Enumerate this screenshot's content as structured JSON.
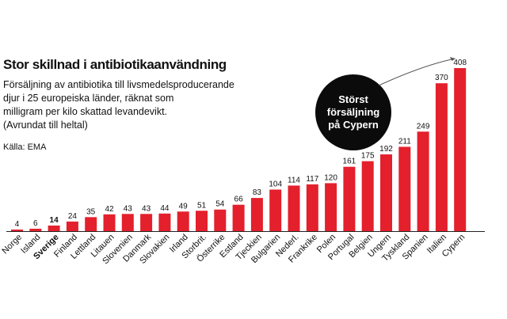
{
  "chart_data": {
    "type": "bar",
    "title": "Stor skillnad i antibiotikaanvändning",
    "subtitle_lines": [
      "Försäljning av antibiotika till livsmedelsproducerande",
      "djur i 25 europeiska länder, räknat som",
      "milligram per kilo skattad levandevikt.",
      "(Avrundat till heltal)"
    ],
    "source": "Källa: EMA",
    "xlabel": "",
    "ylabel": "",
    "ylim": [
      0,
      408
    ],
    "grid": false,
    "highlight": "Sverige",
    "categories": [
      "Norge",
      "Island",
      "Sverige",
      "Finland",
      "Lettland",
      "Litauen",
      "Slovenien",
      "Danmark",
      "Slovakien",
      "Irland",
      "Storbrit.",
      "Österrike",
      "Estland",
      "Tjeckien",
      "Bulgarien",
      "Nederl.",
      "Frankrike",
      "Polen",
      "Portugal",
      "Belgien",
      "Ungern",
      "Tyskland",
      "Spanien",
      "Italien",
      "Cypern"
    ],
    "values": [
      4,
      6,
      14,
      24,
      35,
      42,
      43,
      43,
      44,
      49,
      51,
      54,
      66,
      83,
      104,
      114,
      117,
      120,
      161,
      175,
      192,
      211,
      249,
      370,
      408
    ],
    "annotation_lines": [
      "Störst",
      "försäljning",
      "på Cypern"
    ]
  },
  "colors": {
    "bar": "#e3202c",
    "highlight_bar": "#e3202c",
    "text": "#111111",
    "callout_bg": "#0b0b0b",
    "callout_text": "#ffffff",
    "arrow": "#555555"
  }
}
